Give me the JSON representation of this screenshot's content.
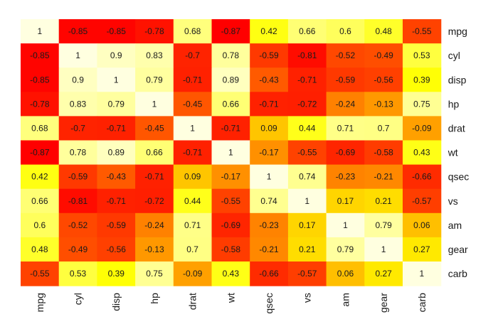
{
  "chart_data": {
    "type": "heatmap",
    "title": "",
    "xlabel": "",
    "ylabel": "",
    "variables": [
      "mpg",
      "cyl",
      "disp",
      "hp",
      "drat",
      "wt",
      "qsec",
      "vs",
      "am",
      "gear",
      "carb"
    ],
    "values": [
      [
        1,
        -0.85,
        -0.85,
        -0.78,
        0.68,
        -0.87,
        0.42,
        0.66,
        0.6,
        0.48,
        -0.55
      ],
      [
        -0.85,
        1,
        0.9,
        0.83,
        -0.7,
        0.78,
        -0.59,
        -0.81,
        -0.52,
        -0.49,
        0.53
      ],
      [
        -0.85,
        0.9,
        1,
        0.79,
        -0.71,
        0.89,
        -0.43,
        -0.71,
        -0.59,
        -0.56,
        0.39
      ],
      [
        -0.78,
        0.83,
        0.79,
        1,
        -0.45,
        0.66,
        -0.71,
        -0.72,
        -0.24,
        -0.13,
        0.75
      ],
      [
        0.68,
        -0.7,
        -0.71,
        -0.45,
        1,
        -0.71,
        0.09,
        0.44,
        0.71,
        0.7,
        -0.09
      ],
      [
        -0.87,
        0.78,
        0.89,
        0.66,
        -0.71,
        1,
        -0.17,
        -0.55,
        -0.69,
        -0.58,
        0.43
      ],
      [
        0.42,
        -0.59,
        -0.43,
        -0.71,
        0.09,
        -0.17,
        1,
        0.74,
        -0.23,
        -0.21,
        -0.66
      ],
      [
        0.66,
        -0.81,
        -0.71,
        -0.72,
        0.44,
        -0.55,
        0.74,
        1,
        0.17,
        0.21,
        -0.57
      ],
      [
        0.6,
        -0.52,
        -0.59,
        -0.24,
        0.71,
        -0.69,
        -0.23,
        0.17,
        1,
        0.79,
        0.06
      ],
      [
        0.48,
        -0.49,
        -0.56,
        -0.13,
        0.7,
        -0.58,
        -0.21,
        0.21,
        0.79,
        1,
        0.27
      ],
      [
        -0.55,
        0.53,
        0.39,
        0.75,
        -0.09,
        0.43,
        -0.66,
        -0.57,
        0.06,
        0.27,
        1
      ]
    ],
    "color_scale": {
      "name": "heat",
      "domain": [
        -0.87,
        1
      ],
      "colors": [
        "#ff0000",
        "#ff4000",
        "#ff8000",
        "#ffc000",
        "#ffff00",
        "#ffff80",
        "#ffffe0"
      ]
    },
    "row_labels_position": "right",
    "col_labels_position": "bottom",
    "col_labels_rotated": true,
    "grid": false,
    "legend": "none"
  }
}
